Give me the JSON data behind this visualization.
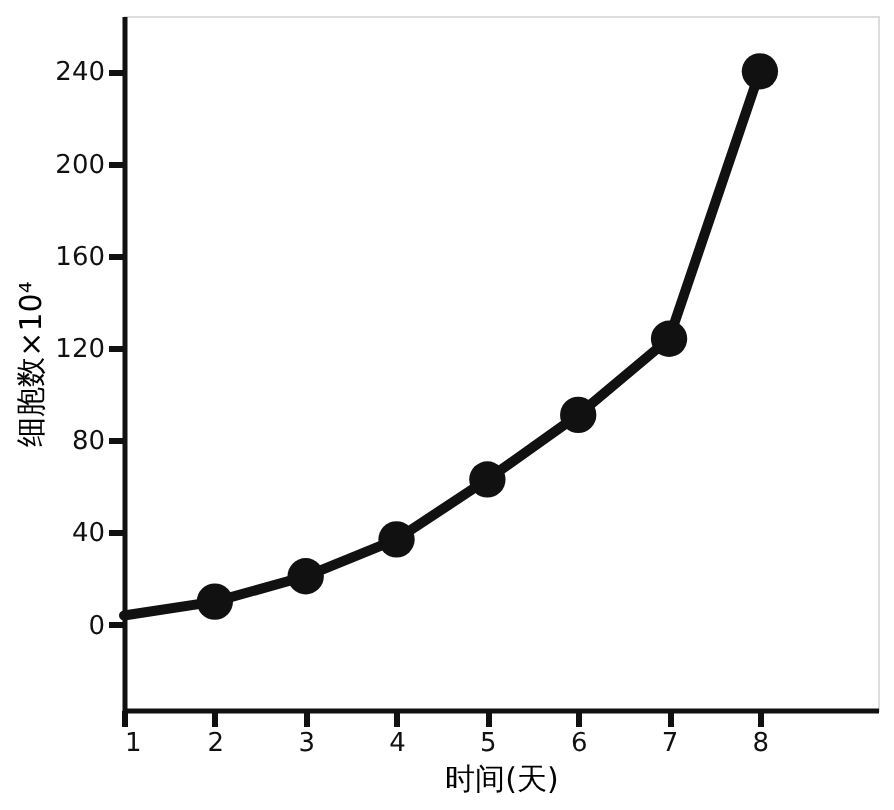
{
  "chart_data": {
    "type": "line",
    "xlabel": "时间(天)",
    "ylabel": "细胞数×10⁴",
    "xlim": [
      1,
      9.3
    ],
    "xticks": [
      1,
      2,
      3,
      4,
      5,
      6,
      7,
      8
    ],
    "ylim": [
      -37,
      264
    ],
    "yticks": [
      0,
      40,
      80,
      120,
      160,
      200,
      240
    ],
    "grid": false,
    "line_style": "solid",
    "series": [
      {
        "color": "#111111",
        "x": [
          1,
          2
        ],
        "values": [
          4,
          10
        ]
      },
      {
        "color": "#111111",
        "x": [
          2,
          3,
          4,
          5,
          6,
          7,
          8
        ],
        "values": [
          10,
          21,
          37,
          63,
          91,
          124,
          240
        ],
        "marker": "circle"
      }
    ]
  }
}
